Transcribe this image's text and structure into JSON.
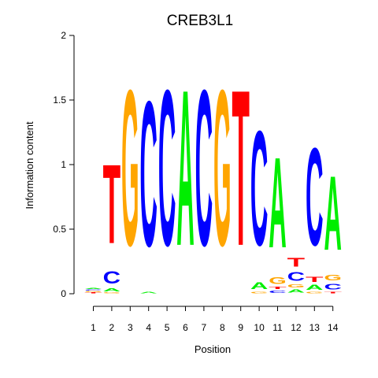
{
  "chart_data": {
    "type": "sequence-logo",
    "title": "CREB3L1",
    "xlabel": "Position",
    "ylabel": "Information content",
    "ylim": [
      0,
      2
    ],
    "yticks": [
      "0",
      "0.5",
      "1",
      "1.5",
      "2"
    ],
    "positions": [
      "1",
      "2",
      "3",
      "4",
      "5",
      "6",
      "7",
      "8",
      "9",
      "10",
      "11",
      "12",
      "13",
      "14"
    ],
    "colors": {
      "A": "#00ee00",
      "C": "#0000ff",
      "G": "#ffa500",
      "T": "#ff0000"
    },
    "stacks": [
      [
        {
          "letter": "T",
          "value": 0.01
        },
        {
          "letter": "G",
          "value": 0.01
        },
        {
          "letter": "C",
          "value": 0.015
        },
        {
          "letter": "A",
          "value": 0.015
        }
      ],
      [
        {
          "letter": "G",
          "value": 0.01
        },
        {
          "letter": "A",
          "value": 0.04
        },
        {
          "letter": "C",
          "value": 0.15
        },
        {
          "letter": "T",
          "value": 0.98
        }
      ],
      [
        {
          "letter": "G",
          "value": 1.93
        }
      ],
      [
        {
          "letter": "A",
          "value": 0.02
        },
        {
          "letter": "C",
          "value": 1.8
        }
      ],
      [
        {
          "letter": "C",
          "value": 1.93
        }
      ],
      [
        {
          "letter": "A",
          "value": 1.93
        }
      ],
      [
        {
          "letter": "C",
          "value": 1.93
        }
      ],
      [
        {
          "letter": "G",
          "value": 1.93
        }
      ],
      [
        {
          "letter": "T",
          "value": 1.93
        }
      ],
      [
        {
          "letter": "G",
          "value": 0.02
        },
        {
          "letter": "A",
          "value": 0.08
        },
        {
          "letter": "C",
          "value": 1.42
        }
      ],
      [
        {
          "letter": "C",
          "value": 0.03
        },
        {
          "letter": "T",
          "value": 0.03
        },
        {
          "letter": "G",
          "value": 0.08
        },
        {
          "letter": "A",
          "value": 1.12
        }
      ],
      [
        {
          "letter": "A",
          "value": 0.04
        },
        {
          "letter": "G",
          "value": 0.04
        },
        {
          "letter": "C",
          "value": 0.11
        },
        {
          "letter": "T",
          "value": 0.11
        }
      ],
      [
        {
          "letter": "G",
          "value": 0.02
        },
        {
          "letter": "A",
          "value": 0.06
        },
        {
          "letter": "T",
          "value": 0.06
        },
        {
          "letter": "C",
          "value": 1.21
        }
      ],
      [
        {
          "letter": "T",
          "value": 0.02
        },
        {
          "letter": "C",
          "value": 0.07
        },
        {
          "letter": "G",
          "value": 0.07
        },
        {
          "letter": "A",
          "value": 0.92
        }
      ]
    ]
  }
}
